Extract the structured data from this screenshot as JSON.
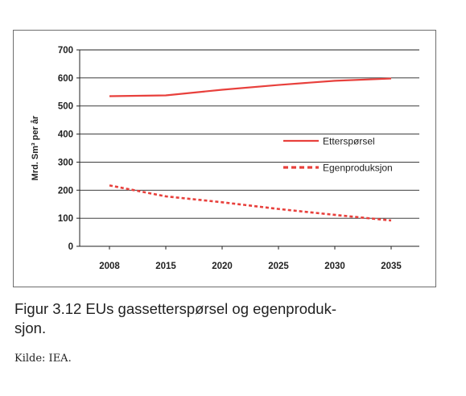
{
  "figure": {
    "caption_lines": [
      "Figur 3.12  EUs gassetterspørsel og egenproduk-",
      "sjon."
    ],
    "source": "Kilde: IEA."
  },
  "chart_data": {
    "type": "line",
    "title": "",
    "xlabel": "",
    "ylabel": "Mrd. Sm³ per år",
    "categories": [
      "2008",
      "2015",
      "2020",
      "2025",
      "2030",
      "2035"
    ],
    "ylim": [
      0,
      700
    ],
    "yticks": [
      0,
      100,
      200,
      300,
      400,
      500,
      600,
      700
    ],
    "grid": true,
    "legend_position": "right",
    "series": [
      {
        "name": "Etterspørsel",
        "style": "solid",
        "color": "#e8403c",
        "values": [
          535,
          538,
          558,
          575,
          590,
          598
        ]
      },
      {
        "name": "Egenproduksjon",
        "style": "dotted",
        "color": "#e8403c",
        "values": [
          217,
          178,
          157,
          133,
          112,
          92
        ]
      }
    ]
  }
}
